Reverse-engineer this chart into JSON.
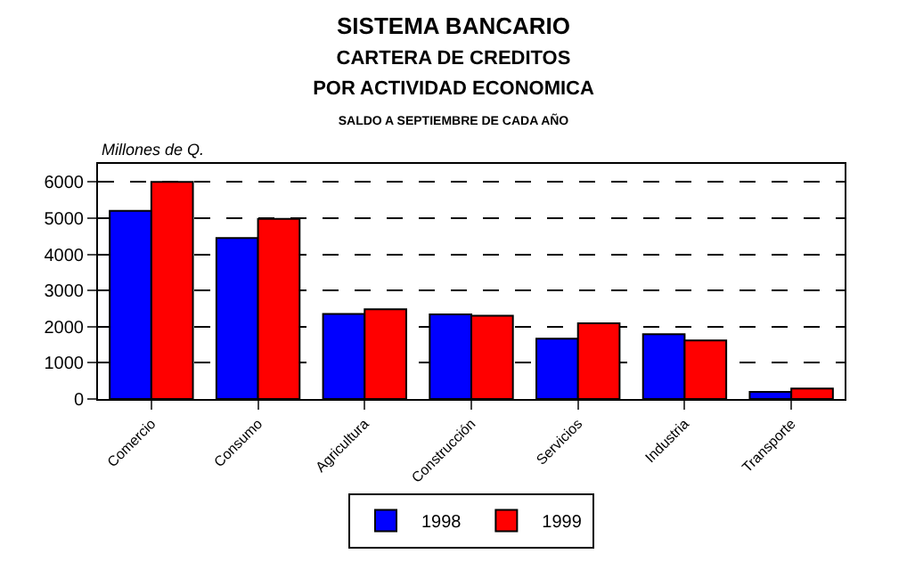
{
  "chart_data": {
    "type": "bar",
    "title": "SISTEMA BANCARIO",
    "subtitle": "CARTERA DE CREDITOS\nPOR ACTIVIDAD ECONOMICA\nSALDO A SEPTIEMBRE DE CADA AÑO",
    "ylabel": "Millones de Q.",
    "categories": [
      "Comercio",
      "Consumo",
      "Agricultura",
      "Construcción",
      "Servicios",
      "Industria",
      "Transporte"
    ],
    "series": [
      {
        "name": "1998",
        "color": "#0000ff",
        "values": [
          5200,
          4450,
          2350,
          2340,
          1670,
          1790,
          200
        ]
      },
      {
        "name": "1999",
        "color": "#ff0000",
        "values": [
          6000,
          4980,
          2480,
          2300,
          2090,
          1620,
          290
        ]
      }
    ],
    "ylim": [
      0,
      6500
    ],
    "yticks": [
      0,
      1000,
      2000,
      3000,
      4000,
      5000,
      6000
    ],
    "grid": "y",
    "legend": "bottom"
  }
}
